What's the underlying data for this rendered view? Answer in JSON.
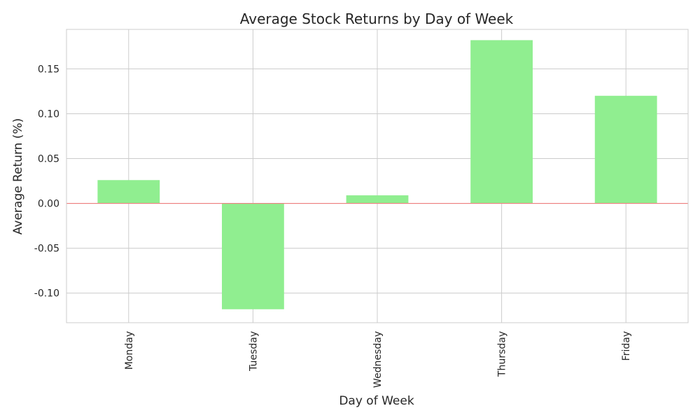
{
  "chart_data": {
    "type": "bar",
    "title": "Average Stock Returns by Day of Week",
    "xlabel": "Day of Week",
    "ylabel": "Average Return (%)",
    "categories": [
      "Monday",
      "Tuesday",
      "Wednesday",
      "Thursday",
      "Friday"
    ],
    "values": [
      0.026,
      -0.118,
      0.009,
      0.182,
      0.12
    ],
    "ylim": [
      -0.133,
      0.194
    ],
    "yticks": [
      -0.1,
      -0.05,
      0.0,
      0.05,
      0.1,
      0.15
    ],
    "ytick_labels": [
      "-0.10",
      "-0.05",
      "0.00",
      "0.05",
      "0.10",
      "0.15"
    ],
    "grid": true,
    "legend": "none",
    "bar_color": "#90ee90",
    "zero_line_color": "#f08080",
    "grid_color": "#cccccc"
  }
}
